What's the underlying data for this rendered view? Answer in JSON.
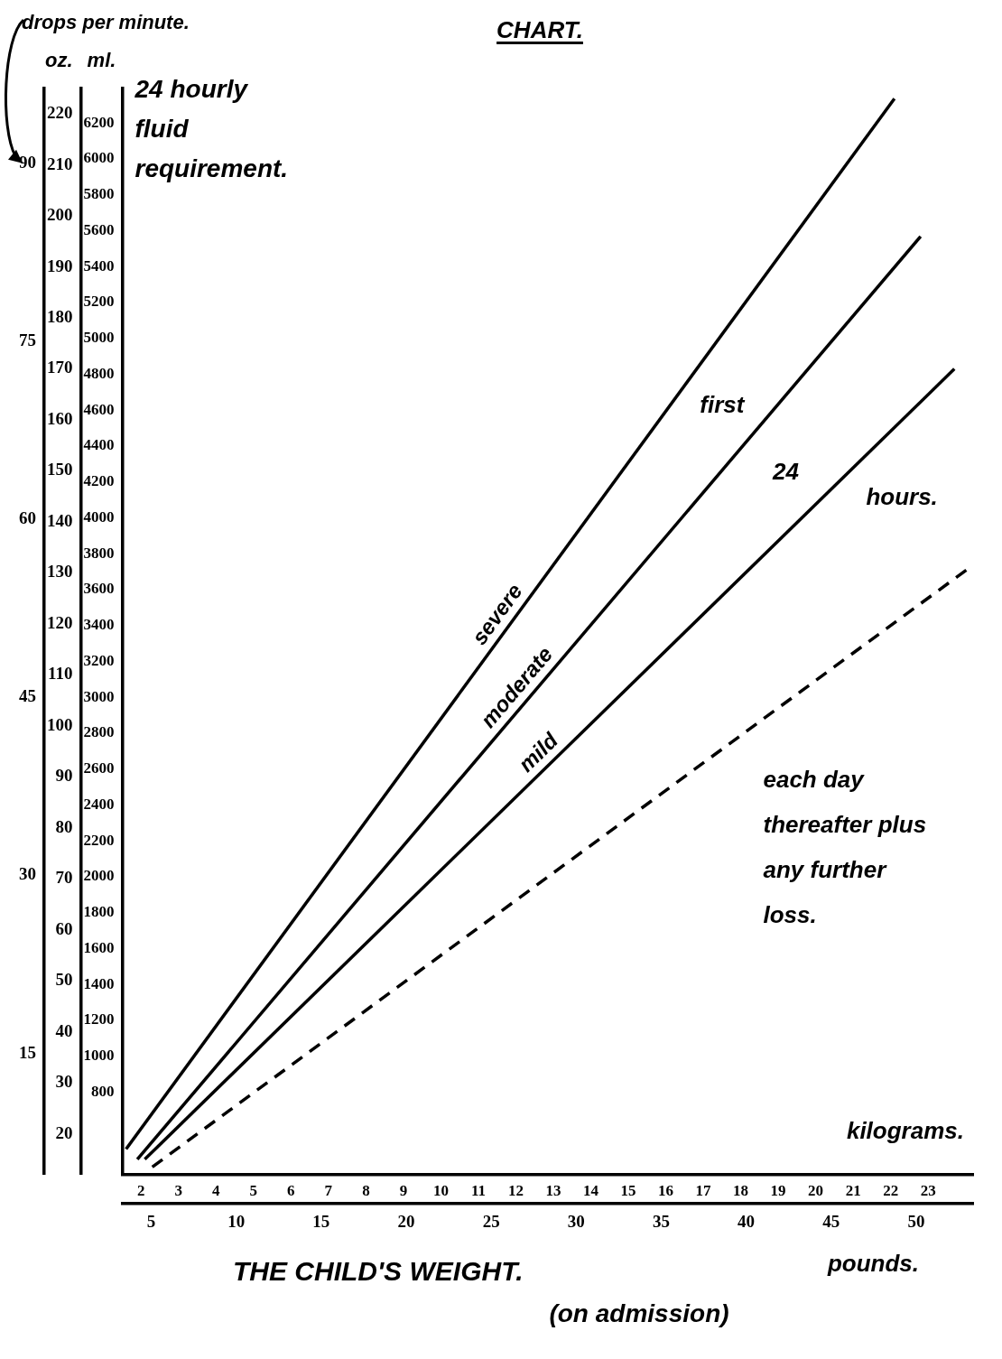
{
  "chart_data": {
    "type": "line",
    "title": "CHART.",
    "xlabel": "kilograms.",
    "x2label": "pounds.",
    "ylabel": "oz.",
    "y2label": "ml.",
    "y3label": "drops per minute.",
    "annotations": [
      "24 hourly fluid requirement.",
      "first 24 hours.",
      "each day thereafter plus any further loss.",
      "THE CHILD'S WEIGHT.",
      "(on admission)"
    ],
    "xlim": [
      1.5,
      24.2
    ],
    "xticks": [
      2,
      3,
      4,
      5,
      6,
      7,
      8,
      9,
      10,
      11,
      12,
      13,
      14,
      15,
      16,
      17,
      18,
      19,
      20,
      21,
      22,
      23
    ],
    "x2lim": [
      3.3,
      53.35
    ],
    "x2ticks": [
      5,
      10,
      15,
      20,
      25,
      30,
      35,
      40,
      45,
      50
    ],
    "ylim": [
      12,
      225
    ],
    "yticks": [
      20,
      30,
      40,
      50,
      60,
      70,
      80,
      90,
      100,
      110,
      120,
      130,
      140,
      150,
      160,
      170,
      180,
      190,
      200,
      210,
      220
    ],
    "y2lim": [
      341,
      6392
    ],
    "y2ticks": [
      800,
      1000,
      1200,
      1400,
      1600,
      1800,
      2000,
      2200,
      2400,
      2600,
      2800,
      3000,
      3200,
      3400,
      3600,
      3800,
      4000,
      4200,
      4400,
      4600,
      4800,
      5000,
      5200,
      5400,
      5600,
      5800,
      6000,
      6200
    ],
    "y3lim": [
      4.8,
      96.3
    ],
    "y3ticks": [
      15,
      30,
      45,
      60,
      75,
      90
    ],
    "grid": false,
    "marker": "none",
    "series": [
      {
        "name": "severe",
        "color": "#000000",
        "line_style": "solid",
        "x": [
          1.6,
          22.1
        ],
        "values": [
          17,
          223
        ]
      },
      {
        "name": "moderate",
        "color": "#000000",
        "line_style": "solid",
        "x": [
          1.9,
          22.8
        ],
        "values": [
          15,
          196
        ]
      },
      {
        "name": "mild",
        "color": "#000000",
        "line_style": "solid",
        "x": [
          2.1,
          23.7
        ],
        "values": [
          15,
          170
        ]
      },
      {
        "color": "#000000",
        "line_style": "dashed",
        "x": [
          2.3,
          24.1
        ],
        "values": [
          13.5,
          131
        ]
      }
    ]
  }
}
